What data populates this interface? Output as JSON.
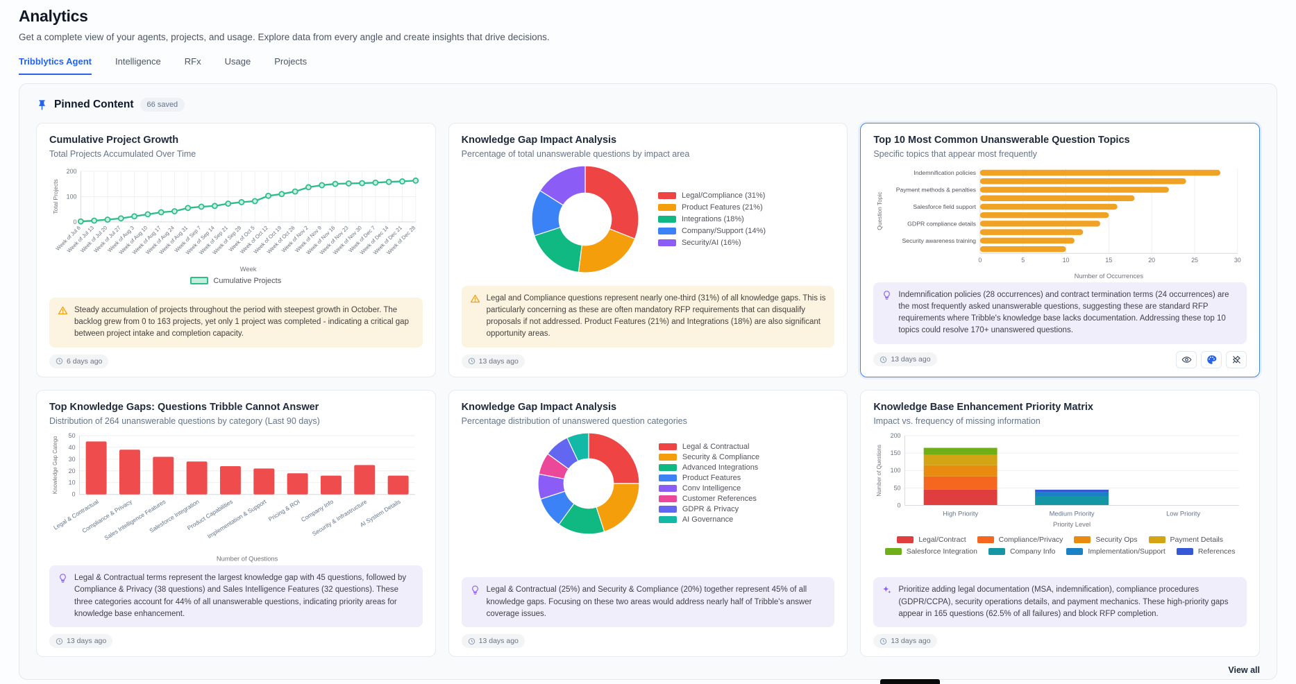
{
  "page": {
    "title": "Analytics",
    "subtitle": "Get a complete view of your agents, projects, and usage. Explore data from every angle and create insights that drive decisions.",
    "tabs": [
      {
        "label": "Tribblytics Agent",
        "active": true
      },
      {
        "label": "Intelligence",
        "active": false
      },
      {
        "label": "RFx",
        "active": false
      },
      {
        "label": "Usage",
        "active": false
      },
      {
        "label": "Projects",
        "active": false
      }
    ],
    "view_all_label": "View all",
    "accent_color": "#2563eb"
  },
  "pinned": {
    "title": "Pinned Content",
    "badge": "66 saved"
  },
  "cards": [
    {
      "title": "Cumulative Project Growth",
      "subtitle": "Total Projects Accumulated Over Time",
      "insight": "Steady accumulation of projects throughout the period with steepest growth in October. The backlog grew from 0 to 163 projects, yet only 1 project was completed - indicating a critical gap between project intake and completion capacity.",
      "insight_type": "warning",
      "timestamp": "6 days ago"
    },
    {
      "title": "Knowledge Gap Impact Analysis",
      "subtitle": "Percentage of total unanswerable questions by impact area",
      "insight": "Legal and Compliance questions represent nearly one-third (31%) of all knowledge gaps. This is particularly concerning as these are often mandatory RFP requirements that can disqualify proposals if not addressed. Product Features (21%) and Integrations (18%) are also significant opportunity areas.",
      "insight_type": "warning",
      "timestamp": "13 days ago"
    },
    {
      "title": "Top 10 Most Common Unanswerable Question Topics",
      "subtitle": "Specific topics that appear most frequently",
      "insight": "Indemnification policies (28 occurrences) and contract termination terms (24 occurrences) are the most frequently asked unanswerable questions, suggesting these are standard RFP requirements where Tribble's knowledge base lacks documentation. Addressing these top 10 topics could resolve 170+ unanswered questions.",
      "insight_type": "lightbulb",
      "timestamp": "13 days ago",
      "selected": true
    },
    {
      "title": "Top Knowledge Gaps: Questions Tribble Cannot Answer",
      "subtitle": "Distribution of 264 unanswerable questions by category (Last 90 days)",
      "insight": "Legal & Contractual terms represent the largest knowledge gap with 45 questions, followed by Compliance & Privacy (38 questions) and Sales Intelligence Features (32 questions). These three categories account for 44% of all unanswerable questions, indicating priority areas for knowledge base enhancement.",
      "insight_type": "lightbulb",
      "timestamp": "13 days ago"
    },
    {
      "title": "Knowledge Gap Impact Analysis",
      "subtitle": "Percentage distribution of unanswered question categories",
      "insight": "Legal & Contractual (25%) and Security & Compliance (20%) together represent 45% of all knowledge gaps. Focusing on these two areas would address nearly half of Tribble's answer coverage issues.",
      "insight_type": "lightbulb",
      "timestamp": "13 days ago"
    },
    {
      "title": "Knowledge Base Enhancement Priority Matrix",
      "subtitle": "Impact vs. frequency of missing information",
      "insight": "Prioritize adding legal documentation (MSA, indemnification), compliance procedures (GDPR/CCPA), security operations details, and payment mechanics. These high-priority gaps appear in 165 questions (62.5% of all failures) and block RFP completion.",
      "insight_type": "sparkle",
      "timestamp": "13 days ago"
    }
  ],
  "chart_data": [
    {
      "type": "line",
      "title": "Cumulative Project Growth",
      "x": [
        "Week of Jul 6",
        "Week of Jul 13",
        "Week of Jul 20",
        "Week of Jul 27",
        "Week of Aug 3",
        "Week of Aug 10",
        "Week of Aug 17",
        "Week of Aug 24",
        "Week of Aug 31",
        "Week of Sep 7",
        "Week of Sep 14",
        "Week of Sep 21",
        "Week of Sep 28",
        "Week of Oct 5",
        "Week of Oct 12",
        "Week of Oct 19",
        "Week of Oct 26",
        "Week of Nov 2",
        "Week of Nov 9",
        "Week of Nov 16",
        "Week of Nov 23",
        "Week of Nov 30",
        "Week of Dec 7",
        "Week of Dec 14",
        "Week of Dec 21",
        "Week of Dec 28"
      ],
      "series": [
        {
          "name": "Cumulative Projects",
          "values": [
            2,
            5,
            9,
            14,
            22,
            30,
            38,
            42,
            55,
            60,
            63,
            72,
            78,
            82,
            103,
            110,
            120,
            137,
            145,
            150,
            152,
            153,
            155,
            158,
            160,
            163
          ]
        }
      ],
      "xlabel": "Week",
      "ylabel": "Total Projects",
      "ylim": [
        0,
        200
      ],
      "yticks": [
        0,
        100,
        200
      ],
      "color": "#2dbd8b",
      "grid": true,
      "legend_position": "bottom"
    },
    {
      "type": "pie",
      "donut": true,
      "labels": [
        "Legal/Compliance (31%)",
        "Product Features (21%)",
        "Integrations (18%)",
        "Company/Support (14%)",
        "Security/AI (16%)"
      ],
      "values": [
        31,
        21,
        18,
        14,
        16
      ],
      "colors": [
        "#ef4444",
        "#f59e0b",
        "#10b981",
        "#3b82f6",
        "#8b5cf6"
      ],
      "legend_position": "right"
    },
    {
      "type": "bar",
      "orientation": "horizontal",
      "categories": [
        "Indemnification policies",
        "",
        "Payment methods & penalties",
        "",
        "Salesforce field support",
        "",
        "GDPR compliance details",
        "",
        "Security awareness training",
        ""
      ],
      "values": [
        28,
        24,
        22,
        18,
        16,
        15,
        14,
        12,
        11,
        10
      ],
      "xticks": [
        0,
        5,
        10,
        15,
        20,
        25,
        30
      ],
      "xlim": [
        0,
        30
      ],
      "xlabel": "Number of Occurrences",
      "ylabel": "Question Topic",
      "color": "#f0a225",
      "grid": true
    },
    {
      "type": "bar",
      "orientation": "vertical",
      "categories": [
        "Legal & Contractual",
        "Compliance & Privacy",
        "Sales Intelligence Features",
        "Salesforce Integration",
        "Product Capabilities",
        "Implementation & Support",
        "Pricing & ROI",
        "Company Info",
        "Security & Infrastructure",
        "AI System Details"
      ],
      "values": [
        45,
        38,
        32,
        28,
        24,
        22,
        18,
        16,
        25,
        16
      ],
      "yticks": [
        0,
        10,
        20,
        30,
        40,
        50
      ],
      "ylim": [
        0,
        50
      ],
      "xlabel": "Number of Questions",
      "ylabel": "Knowledge Gap Catego",
      "color": "#ef4d4d",
      "grid": true
    },
    {
      "type": "pie",
      "donut": true,
      "labels": [
        "Legal & Contractual",
        "Security & Compliance",
        "Advanced Integrations",
        "Product Features",
        "Conv Intelligence",
        "Customer References",
        "GDPR & Privacy",
        "AI Governance"
      ],
      "values": [
        25,
        20,
        15,
        10,
        8,
        7,
        8,
        7
      ],
      "colors": [
        "#ef4444",
        "#f59e0b",
        "#10b981",
        "#3b82f6",
        "#8b5cf6",
        "#ec4899",
        "#6366f1",
        "#14b8a6"
      ],
      "legend_position": "right"
    },
    {
      "type": "bar",
      "stacked": true,
      "categories": [
        "High Priority",
        "Medium Priority",
        "Low Priority"
      ],
      "series": [
        {
          "name": "Legal/Contract",
          "color": "#e03e3e",
          "values": [
            45,
            0,
            0
          ]
        },
        {
          "name": "Compliance/Privacy",
          "color": "#f5661f",
          "values": [
            38,
            0,
            0
          ]
        },
        {
          "name": "Security Ops",
          "color": "#e88b0e",
          "values": [
            32,
            0,
            0
          ]
        },
        {
          "name": "Payment Details",
          "color": "#d3a514",
          "values": [
            30,
            0,
            0
          ]
        },
        {
          "name": "Salesforce Integration",
          "color": "#71af18",
          "values": [
            20,
            0,
            0
          ]
        },
        {
          "name": "Company Info",
          "color": "#1596a5",
          "values": [
            0,
            25,
            0
          ]
        },
        {
          "name": "Implementation/Support",
          "color": "#1b81c5",
          "values": [
            0,
            13,
            0
          ]
        },
        {
          "name": "References",
          "color": "#3558d6",
          "values": [
            0,
            7,
            0
          ]
        }
      ],
      "yticks": [
        0,
        50,
        100,
        150,
        200
      ],
      "ylim": [
        0,
        200
      ],
      "xlabel": "Priority Level",
      "ylabel": "Number of Questions",
      "legend_position": "bottom",
      "grid": true
    }
  ]
}
